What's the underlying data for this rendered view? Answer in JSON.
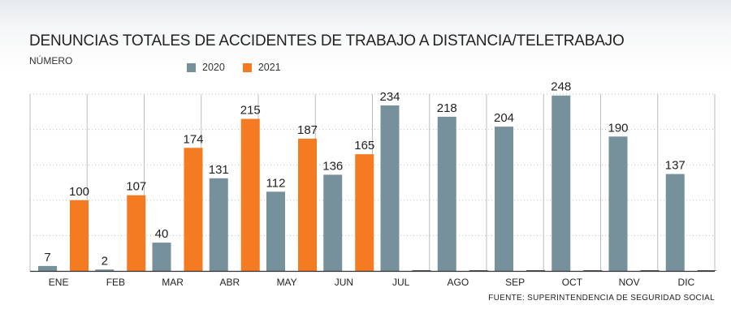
{
  "title": "DENUNCIAS TOTALES DE ACCIDENTES DE TRABAJO A DISTANCIA/TELETRABAJO",
  "subtitle": "NÚMERO",
  "source": "FUENTE: SUPERINTENDENCIA DE SEGURIDAD SOCIAL",
  "colors": {
    "s2020": "#76909c",
    "s2021": "#f47b22",
    "grid": "#bdbdbd",
    "axis": "#333333"
  },
  "chart_data": {
    "type": "bar",
    "title": "DENUNCIAS TOTALES DE ACCIDENTES DE TRABAJO A DISTANCIA/TELETRABAJO",
    "ylabel": "NÚMERO",
    "xlabel": "",
    "categories": [
      "ENE",
      "FEB",
      "MAR",
      "ABR",
      "MAY",
      "JUN",
      "JUL",
      "AGO",
      "SEP",
      "OCT",
      "NOV",
      "DIC"
    ],
    "series": [
      {
        "name": "2020",
        "values": [
          7,
          2,
          40,
          131,
          112,
          136,
          234,
          218,
          204,
          248,
          190,
          137
        ]
      },
      {
        "name": "2021",
        "values": [
          100,
          107,
          174,
          215,
          187,
          165,
          null,
          null,
          null,
          null,
          null,
          null
        ]
      }
    ],
    "ylim": [
      0,
      250
    ],
    "grid": true,
    "legend_position": "top"
  }
}
